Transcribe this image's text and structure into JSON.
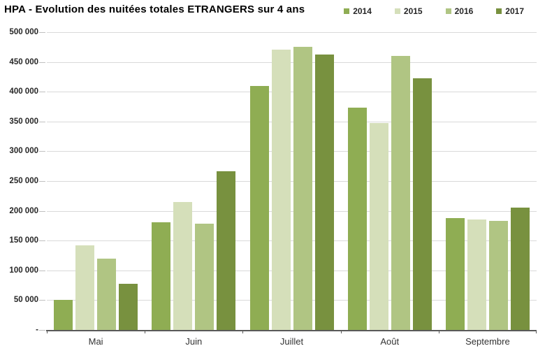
{
  "title": "HPA - Evolution des nuitées totales ETRANGERS sur 4 ans",
  "chart_data": {
    "type": "bar",
    "title": "HPA - Evolution des nuitées totales ETRANGERS sur 4 ans",
    "categories": [
      "Mai",
      "Juin",
      "Juillet",
      "Août",
      "Septembre"
    ],
    "series": [
      {
        "name": "2014",
        "color": "#8fad53",
        "values": [
          50000,
          181000,
          410000,
          373000,
          188000
        ]
      },
      {
        "name": "2015",
        "color": "#d5dfba",
        "values": [
          142000,
          215000,
          471000,
          347000,
          185000
        ]
      },
      {
        "name": "2016",
        "color": "#b0c583",
        "values": [
          120000,
          179000,
          475000,
          460000,
          183000
        ]
      },
      {
        "name": "2017",
        "color": "#78913f",
        "values": [
          77000,
          266000,
          463000,
          422000,
          205000
        ]
      }
    ],
    "xlabel": "",
    "ylabel": "",
    "ylim": [
      0,
      500000
    ],
    "ytick_interval": 50000,
    "ytick_labels": [
      "500 000",
      "450 000",
      "400 000",
      "350 000",
      "300 000",
      "250 000",
      "200 000",
      "150 000",
      "100 000",
      "50 000",
      "-"
    ],
    "grid": true,
    "legend_position": "top-right"
  },
  "colors": {
    "gridline": "#d9d9d9",
    "axis": "#595959",
    "ytick": "#c0c0c0",
    "label_text": "#262626",
    "xlabel_text": "#333333"
  }
}
